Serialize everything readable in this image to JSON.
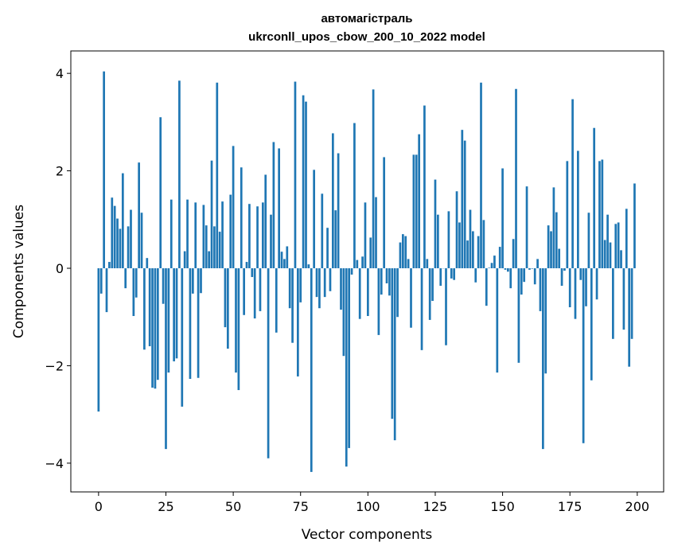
{
  "chart_data": {
    "type": "bar",
    "title_line1": "автомагістраль",
    "title_line2": "ukrconll_upos_cbow_200_10_2022 model",
    "xlabel": "Vector components",
    "ylabel": "Components values",
    "xlim": [
      -10.3,
      209.8
    ],
    "ylim": [
      -4.59,
      4.46
    ],
    "xticks": [
      0,
      25,
      50,
      75,
      100,
      125,
      150,
      175,
      200
    ],
    "yticks": [
      -4,
      -2,
      0,
      2,
      4
    ],
    "ytick_labels": [
      "−4",
      "−2",
      "0",
      "2",
      "4"
    ],
    "grid": false,
    "bar_color": "#1f77b4",
    "values": [
      -2.94,
      -0.52,
      4.04,
      -0.9,
      0.13,
      1.45,
      1.28,
      1.02,
      0.81,
      1.95,
      -0.41,
      0.86,
      1.2,
      -0.98,
      -0.6,
      2.17,
      1.14,
      -1.67,
      0.21,
      -1.6,
      -2.45,
      -2.47,
      -2.29,
      3.1,
      -0.73,
      -3.71,
      -2.14,
      1.41,
      -1.91,
      -1.85,
      3.85,
      -2.84,
      0.35,
      1.41,
      -2.27,
      -0.52,
      1.35,
      -2.25,
      -0.51,
      1.3,
      0.88,
      0.35,
      2.21,
      0.86,
      3.81,
      0.75,
      1.37,
      -1.21,
      -1.65,
      1.51,
      2.51,
      -2.14,
      -2.5,
      2.07,
      -0.96,
      0.13,
      1.32,
      -0.18,
      -1.03,
      1.27,
      -0.88,
      1.35,
      1.92,
      -3.9,
      1.1,
      2.59,
      -1.32,
      2.46,
      0.34,
      0.19,
      0.45,
      -0.82,
      -1.53,
      3.83,
      -2.22,
      -0.7,
      3.55,
      3.42,
      0.08,
      -4.18,
      2.02,
      -0.59,
      -0.82,
      1.53,
      -0.59,
      0.83,
      -0.47,
      2.77,
      1.19,
      2.36,
      -0.85,
      -1.8,
      -4.07,
      -3.69,
      -0.13,
      2.98,
      0.17,
      -1.04,
      0.24,
      1.35,
      -0.98,
      0.63,
      3.67,
      1.46,
      -1.37,
      -0.54,
      2.28,
      -0.31,
      -0.56,
      -3.09,
      -3.53,
      -1.0,
      0.53,
      0.7,
      0.66,
      0.19,
      -1.22,
      2.33,
      2.33,
      2.75,
      -1.68,
      3.34,
      0.19,
      -1.06,
      -0.67,
      1.82,
      1.1,
      -0.36,
      0.0,
      -1.58,
      1.17,
      -0.21,
      -0.24,
      1.58,
      0.94,
      2.84,
      2.62,
      0.57,
      1.2,
      0.76,
      -0.29,
      0.66,
      3.81,
      0.99,
      -0.77,
      0.01,
      0.11,
      0.26,
      -2.14,
      0.44,
      2.05,
      -0.03,
      -0.07,
      -0.41,
      0.6,
      3.68,
      -1.94,
      -0.54,
      -0.28,
      1.68,
      -0.03,
      -0.01,
      -0.33,
      0.19,
      -0.88,
      -3.71,
      -2.16,
      0.88,
      0.76,
      1.66,
      1.15,
      0.4,
      -0.36,
      -0.05,
      2.2,
      -0.8,
      3.47,
      -1.04,
      2.41,
      -0.24,
      -3.59,
      -0.78,
      1.14,
      -2.3,
      2.88,
      -0.64,
      2.2,
      2.23,
      0.58,
      1.1,
      0.53,
      -1.45,
      0.91,
      0.94,
      0.37,
      -1.26,
      1.22,
      -2.02,
      -1.45,
      1.74
    ]
  }
}
